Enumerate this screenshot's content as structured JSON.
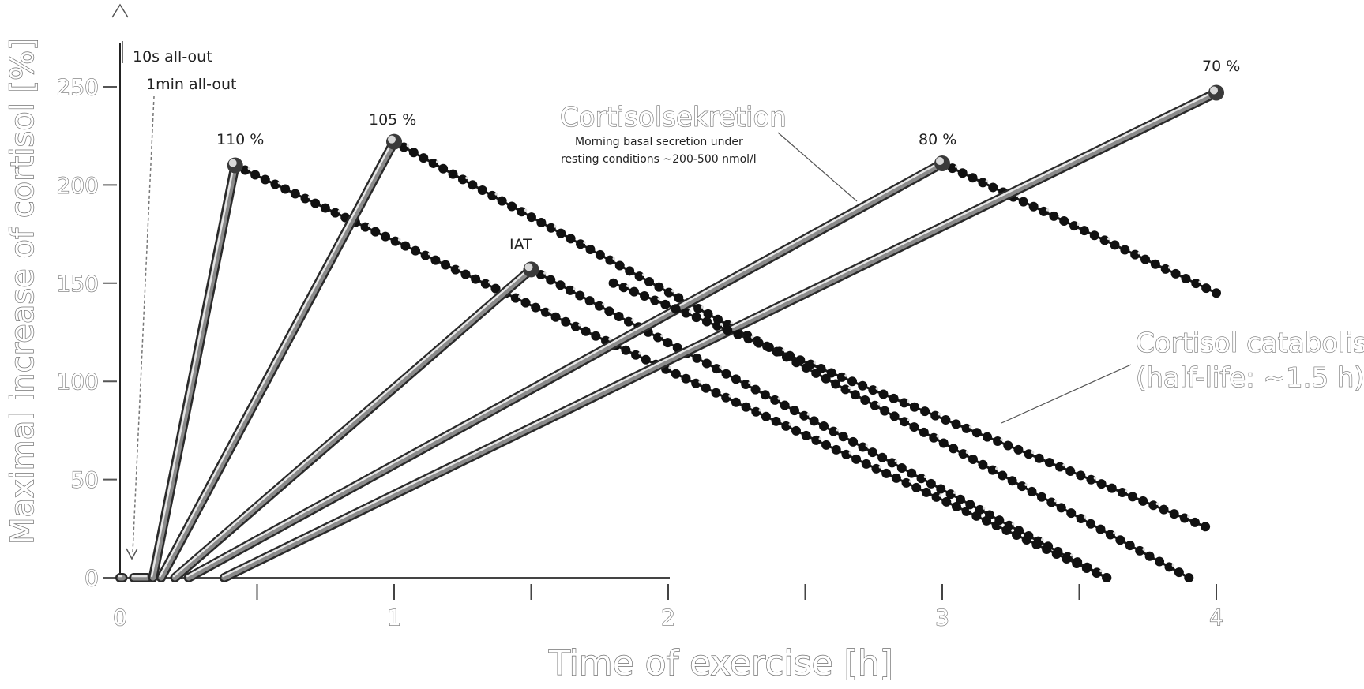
{
  "chart_data": {
    "type": "line",
    "xlabel": "Time of exercise [h]",
    "ylabel": "Maximal increase of cortisol [%]",
    "xlim": [
      0,
      4
    ],
    "ylim": [
      0,
      250
    ],
    "x_ticks": [
      "0",
      "1",
      "2",
      "3",
      "4"
    ],
    "y_ticks": [
      "0",
      "50",
      "100",
      "150",
      "200",
      "250"
    ],
    "grid": false,
    "top_labels": [
      "10s all-out",
      "1min all-out"
    ],
    "secretion_note": {
      "title": "Cortisolsekretion",
      "subtitle_line1": "Morning basal secretion under",
      "subtitle_line2": "resting conditions ~200-500 nmol/l"
    },
    "catabolism_note": {
      "line1": "Cortisol catabolism",
      "line2": "(half-life: ~1.5 h)"
    },
    "series": [
      {
        "name": "10s all-out",
        "rise": [
          [
            0.0,
            0
          ],
          [
            0.01,
            0
          ]
        ],
        "decay": []
      },
      {
        "name": "1min all-out",
        "rise": [
          [
            0.05,
            0
          ],
          [
            0.1,
            0
          ]
        ],
        "decay": []
      },
      {
        "name": "110 %",
        "rise": [
          [
            0.12,
            0
          ],
          [
            0.42,
            210
          ]
        ],
        "decay": [
          [
            0.42,
            210
          ],
          [
            3.6,
            0
          ]
        ]
      },
      {
        "name": "105 %",
        "rise": [
          [
            0.15,
            0
          ],
          [
            1.0,
            222
          ]
        ],
        "decay": [
          [
            1.0,
            222
          ],
          [
            3.9,
            0
          ]
        ]
      },
      {
        "name": "IAT",
        "rise": [
          [
            0.2,
            0
          ],
          [
            1.5,
            157
          ]
        ],
        "decay": [
          [
            1.5,
            157
          ],
          [
            3.6,
            0
          ]
        ]
      },
      {
        "name": "80 %",
        "rise": [
          [
            0.25,
            0
          ],
          [
            3.0,
            211
          ]
        ],
        "decay": [
          [
            3.0,
            211
          ],
          [
            4.0,
            145
          ]
        ]
      },
      {
        "name": "70 %",
        "rise": [
          [
            0.38,
            0
          ],
          [
            4.0,
            247
          ]
        ],
        "decay": []
      },
      {
        "name": "",
        "rise": [],
        "decay": [
          [
            1.8,
            150
          ],
          [
            3.96,
            26
          ]
        ]
      }
    ]
  }
}
